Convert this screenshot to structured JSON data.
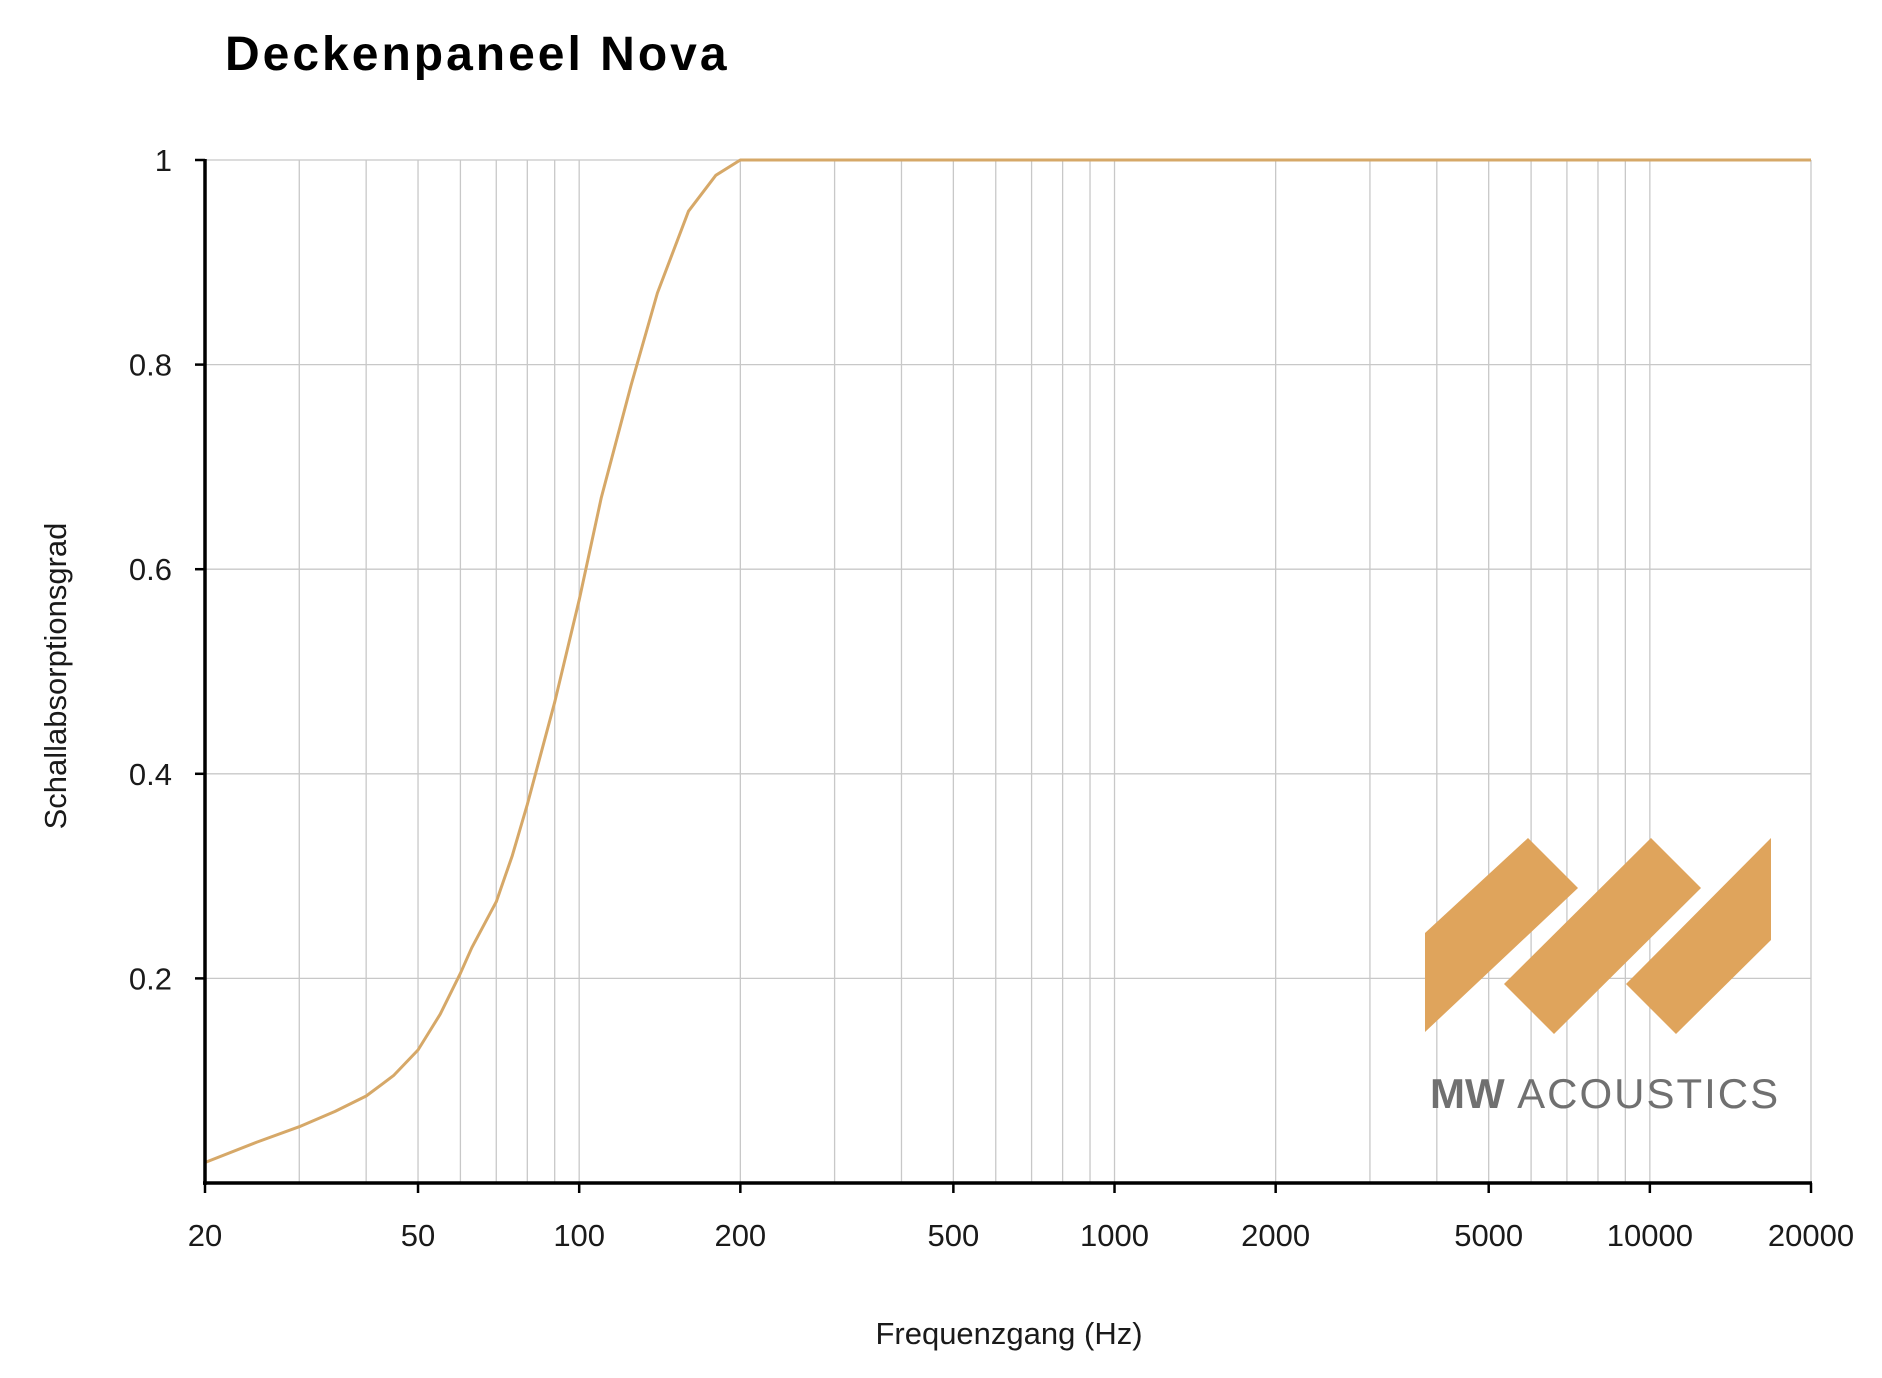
{
  "chart_data": {
    "type": "line",
    "title": "Deckenpaneel Nova",
    "xlabel": "Frequenzgang (Hz)",
    "ylabel": "Schallabsorptionsgrad",
    "x_scale": "log",
    "xlim": [
      20,
      20000
    ],
    "ylim": [
      0,
      1
    ],
    "grid": true,
    "x_tick_labels": [
      "20",
      "50",
      "100",
      "200",
      "500",
      "1000",
      "2000",
      "5000",
      "10000",
      "20000"
    ],
    "y_tick_labels": [
      "0.2",
      "0.4",
      "0.6",
      "0.8",
      "1"
    ],
    "colors": {
      "line": "#d6a868",
      "grid": "#c8c8c8",
      "axis": "#000000",
      "logo_shape": "#dfa45c",
      "logo_text": "#707070"
    },
    "series": [
      {
        "x": [
          20,
          25,
          30,
          35,
          40,
          45,
          50,
          55,
          60,
          63,
          70,
          75,
          80,
          90,
          100,
          110,
          125,
          140,
          160,
          180,
          200,
          250,
          500,
          1000,
          2000,
          5000,
          10000,
          20000
        ],
        "y": [
          0.02,
          0.04,
          0.055,
          0.07,
          0.085,
          0.105,
          0.13,
          0.165,
          0.205,
          0.23,
          0.275,
          0.32,
          0.37,
          0.47,
          0.57,
          0.67,
          0.78,
          0.87,
          0.95,
          0.985,
          1.0,
          1.0,
          1.0,
          1.0,
          1.0,
          1.0,
          1.0,
          1.0
        ]
      }
    ]
  },
  "logo": {
    "name": "MW ACOUSTICS",
    "strong": "MW",
    "light": "ACOUSTICS"
  }
}
